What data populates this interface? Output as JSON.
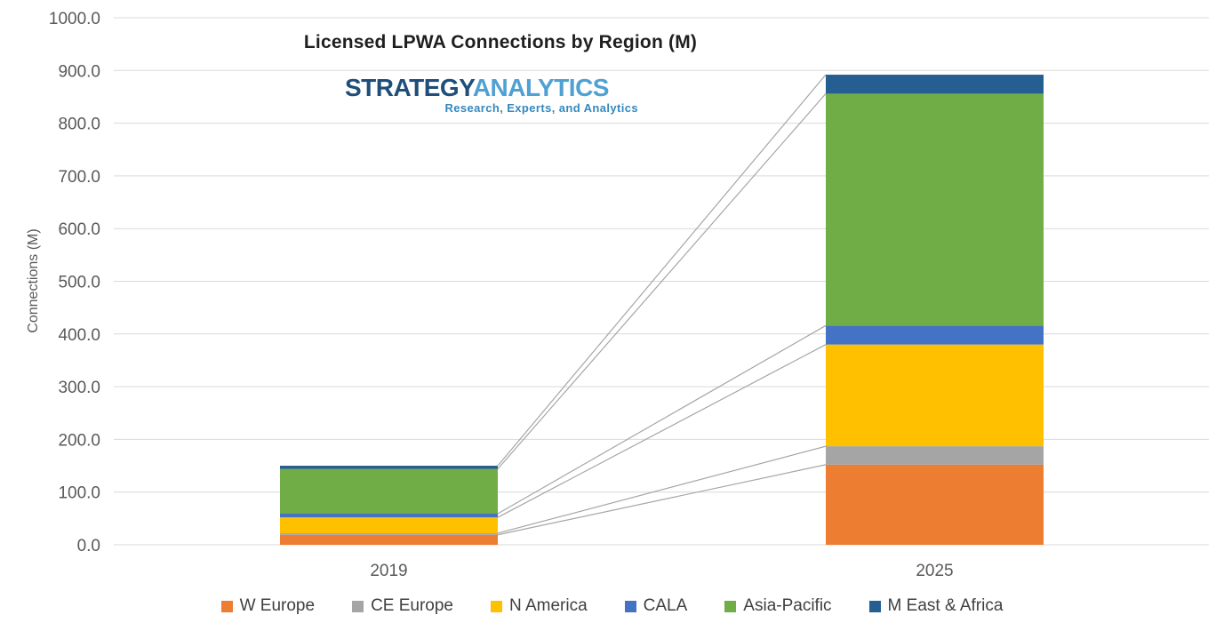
{
  "title": "Licensed LPWA Connections by Region (M)",
  "logo": {
    "brand_part1": "STRATEGY",
    "brand_part2": "ANALYTICS",
    "tagline": "Research, Experts, and Analytics",
    "part1_color": "#1E4E79",
    "part2_color": "#4FA0D3",
    "tagline_color": "#3488BF"
  },
  "y_axis_title": "Connections (M)",
  "chart_data": {
    "type": "bar",
    "stacked": true,
    "title": "Licensed LPWA Connections by Region (M)",
    "xlabel": "",
    "ylabel": "Connections (M)",
    "categories": [
      "2019",
      "2025"
    ],
    "series": [
      {
        "name": "W Europe",
        "color": "#ED7D31",
        "values": [
          19,
          152
        ]
      },
      {
        "name": "CE Europe",
        "color": "#A5A5A5",
        "values": [
          3,
          35
        ]
      },
      {
        "name": "N America",
        "color": "#FFC000",
        "values": [
          30,
          193
        ]
      },
      {
        "name": "CALA",
        "color": "#4472C4",
        "values": [
          7,
          36
        ]
      },
      {
        "name": "Asia-Pacific",
        "color": "#70AD47",
        "values": [
          85,
          440
        ]
      },
      {
        "name": "M East & Africa",
        "color": "#255E91",
        "values": [
          6,
          36
        ]
      }
    ],
    "stack_totals": [
      150,
      892
    ],
    "ylim": [
      0,
      1000
    ],
    "ytick_step": 100,
    "ytick_decimals": 1,
    "grid": true,
    "gridline_color": "#D9D9D9",
    "axis_text_color": "#595959",
    "series_line_color": "#A6A6A6",
    "has_series_connector_lines": true,
    "legend_position": "bottom"
  }
}
